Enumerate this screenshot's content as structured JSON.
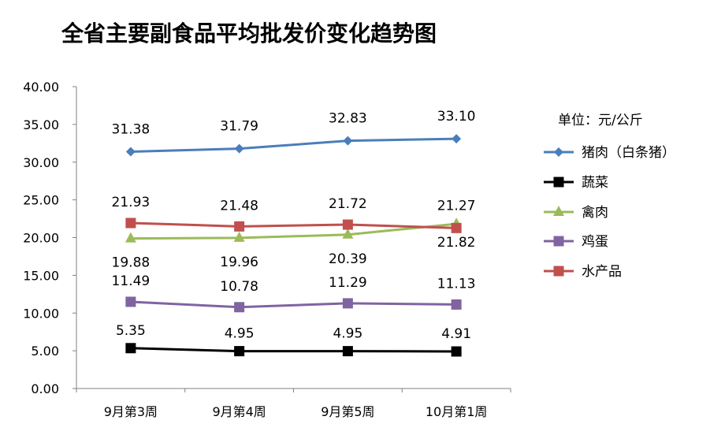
{
  "chart_data": {
    "type": "line",
    "title": "全省主要副食品平均批发价变化趋势图",
    "unit": "单位：元/公斤",
    "categories": [
      "9月第3周",
      "9月第4周",
      "9月第5周",
      "10月第1周"
    ],
    "ylim": [
      0,
      40
    ],
    "yticks": [
      "0.00",
      "5.00",
      "10.00",
      "15.00",
      "20.00",
      "25.00",
      "30.00",
      "35.00",
      "40.00"
    ],
    "grid": false,
    "legend_position": "right",
    "series": [
      {
        "name": "猪肉（白条猪）",
        "color": "#4A7EBB",
        "marker": "diamond",
        "values": [
          31.38,
          31.79,
          32.83,
          33.1
        ],
        "labels": [
          "31.38",
          "31.79",
          "32.83",
          "33.10"
        ]
      },
      {
        "name": "蔬菜",
        "color": "#000000",
        "marker": "square",
        "values": [
          5.35,
          4.95,
          4.95,
          4.91
        ],
        "labels": [
          "5.35",
          "4.95",
          "4.95",
          "4.91"
        ]
      },
      {
        "name": "禽肉",
        "color": "#9BBB59",
        "marker": "triangle",
        "values": [
          19.88,
          19.96,
          20.39,
          21.82
        ],
        "labels": [
          "19.88",
          "19.96",
          "20.39",
          "21.82"
        ]
      },
      {
        "name": "鸡蛋",
        "color": "#8064A2",
        "marker": "square",
        "values": [
          11.49,
          10.78,
          11.29,
          11.13
        ],
        "labels": [
          "11.49",
          "10.78",
          "11.29",
          "11.13"
        ]
      },
      {
        "name": "水产品",
        "color": "#C0504D",
        "marker": "square",
        "values": [
          21.93,
          21.48,
          21.72,
          21.27
        ],
        "labels": [
          "21.93",
          "21.48",
          "21.72",
          "21.27"
        ]
      }
    ]
  }
}
